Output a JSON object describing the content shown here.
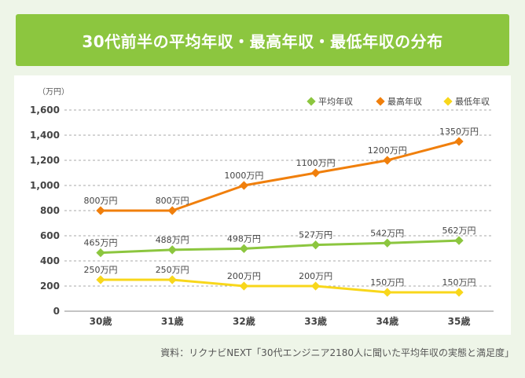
{
  "title": "30代前半の平均年収・最高年収・最低年収の分布",
  "source": "資料：リクナビNEXT「30代エンジニア2180人に聞いた平均年収の実態と満足度」",
  "chart_data": {
    "type": "line",
    "unit_label": "（万円）",
    "categories": [
      "30歳",
      "31歳",
      "32歳",
      "33歳",
      "34歳",
      "35歳"
    ],
    "ylim": [
      0,
      1600
    ],
    "yticks": [
      "0",
      "200",
      "400",
      "600",
      "800",
      "1,000",
      "1,200",
      "1,400",
      "1,600"
    ],
    "ytick_values": [
      0,
      200,
      400,
      600,
      800,
      1000,
      1200,
      1400,
      1600
    ],
    "grid": true,
    "legend_position": "top-right",
    "series": [
      {
        "name": "平均年収",
        "color": "#8cc63f",
        "values": [
          465,
          488,
          498,
          527,
          542,
          562
        ],
        "labels": [
          "465万円",
          "488万円",
          "498万円",
          "527万円",
          "542万円",
          "562万円"
        ]
      },
      {
        "name": "最高年収",
        "color": "#f07f0c",
        "values": [
          800,
          800,
          1000,
          1100,
          1200,
          1350
        ],
        "labels": [
          "800万円",
          "800万円",
          "1000万円",
          "1100万円",
          "1200万円",
          "1350万円"
        ]
      },
      {
        "name": "最低年収",
        "color": "#f8d71b",
        "values": [
          250,
          250,
          200,
          200,
          150,
          150
        ],
        "labels": [
          "250万円",
          "250万円",
          "200万円",
          "200万円",
          "150万円",
          "150万円"
        ]
      }
    ]
  }
}
